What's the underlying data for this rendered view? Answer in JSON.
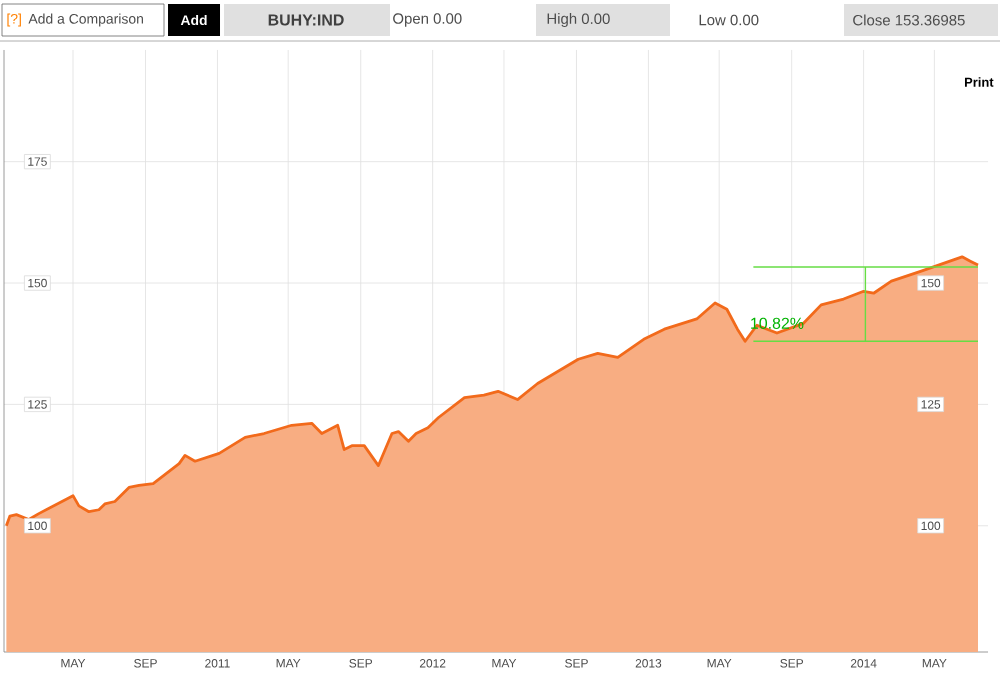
{
  "chart_data": {
    "type": "area",
    "color": "#f26a1b",
    "x": [
      "2010-01-08",
      "2010-01-14",
      "2010-01-25",
      "2010-02-15",
      "2010-03-04",
      "2010-05-01",
      "2010-05-11",
      "2010-05-28",
      "2010-06-14",
      "2010-06-24",
      "2010-07-11",
      "2010-08-04",
      "2010-08-21",
      "2010-09-14",
      "2010-10-28",
      "2010-11-07",
      "2010-11-24",
      "2011-01-04",
      "2011-02-17",
      "2011-03-21",
      "2011-05-07",
      "2011-06-10",
      "2011-06-27",
      "2011-07-24",
      "2011-08-04",
      "2011-08-17",
      "2011-09-07",
      "2011-10-01",
      "2011-10-24",
      "2011-11-04",
      "2011-11-21",
      "2011-12-04",
      "2011-12-24",
      "2012-01-11",
      "2012-02-24",
      "2012-03-28",
      "2012-04-21",
      "2012-05-24",
      "2012-06-27",
      "2012-09-04",
      "2012-10-07",
      "2012-11-10",
      "2012-12-24",
      "2013-01-28",
      "2013-03-24",
      "2013-04-24",
      "2013-05-14",
      "2013-06-01",
      "2013-06-14",
      "2013-07-04",
      "2013-08-07",
      "2013-09-21",
      "2013-10-21",
      "2013-11-28",
      "2014-01-01",
      "2014-01-18",
      "2014-02-17",
      "2014-04-10",
      "2014-06-17",
      "2014-07-01",
      "2014-07-14"
    ],
    "values": [
      100,
      102,
      102.3,
      101.3,
      102.5,
      106.2,
      104.1,
      102.9,
      103.3,
      104.5,
      105,
      107.9,
      108.3,
      108.7,
      112.8,
      114.5,
      113.3,
      114.9,
      118.2,
      119,
      120.7,
      121.1,
      119,
      120.7,
      115.7,
      116.5,
      116.5,
      112.4,
      119,
      119.4,
      117.4,
      119,
      120.2,
      122.3,
      126.4,
      126.9,
      127.7,
      126,
      129.3,
      134.3,
      135.5,
      134.7,
      138.4,
      140.5,
      142.6,
      145.9,
      144.6,
      140.5,
      138,
      141.3,
      139.7,
      141.7,
      145.5,
      146.7,
      148.3,
      147.9,
      150.4,
      152.5,
      155.4,
      154.5,
      153.7
    ],
    "xlim": [
      "2010-01-04",
      "2014-07-31"
    ],
    "xticks": [
      {
        "value": "2010-05-01",
        "label": "MAY"
      },
      {
        "value": "2010-09-01",
        "label": "SEP"
      },
      {
        "value": "2011-01-01",
        "label": "2011"
      },
      {
        "value": "2011-05-01",
        "label": "MAY"
      },
      {
        "value": "2011-09-01",
        "label": "SEP"
      },
      {
        "value": "2012-01-01",
        "label": "2012"
      },
      {
        "value": "2012-05-01",
        "label": "MAY"
      },
      {
        "value": "2012-09-01",
        "label": "SEP"
      },
      {
        "value": "2013-01-01",
        "label": "2013"
      },
      {
        "value": "2013-05-01",
        "label": "MAY"
      },
      {
        "value": "2013-09-01",
        "label": "SEP"
      },
      {
        "value": "2014-01-01",
        "label": "2014"
      },
      {
        "value": "2014-05-01",
        "label": "MAY"
      }
    ],
    "ylim": [
      74,
      198
    ],
    "yticks": [
      100,
      125,
      150,
      175
    ],
    "y2lim": [
      74,
      198
    ],
    "y2ticks": [
      100,
      125,
      150
    ],
    "grid": true,
    "ref_lines": [
      {
        "axis": "y",
        "value": 153.3,
        "color": "#66dd44"
      },
      {
        "axis": "y",
        "value": 138,
        "color": "#66dd44"
      },
      {
        "axis": "x",
        "value": "2014-01-04",
        "color": "#66dd44"
      }
    ],
    "annotations": [
      "[?]",
      "Add a Comparison",
      "Add",
      "BUHY:IND",
      "Open 0.00",
      "High 0.00",
      "Low 0.00",
      "Close 153.36985",
      "Print",
      {
        "text": "10.82%",
        "x": "2013-08-07",
        "y": 141.7
      }
    ]
  }
}
